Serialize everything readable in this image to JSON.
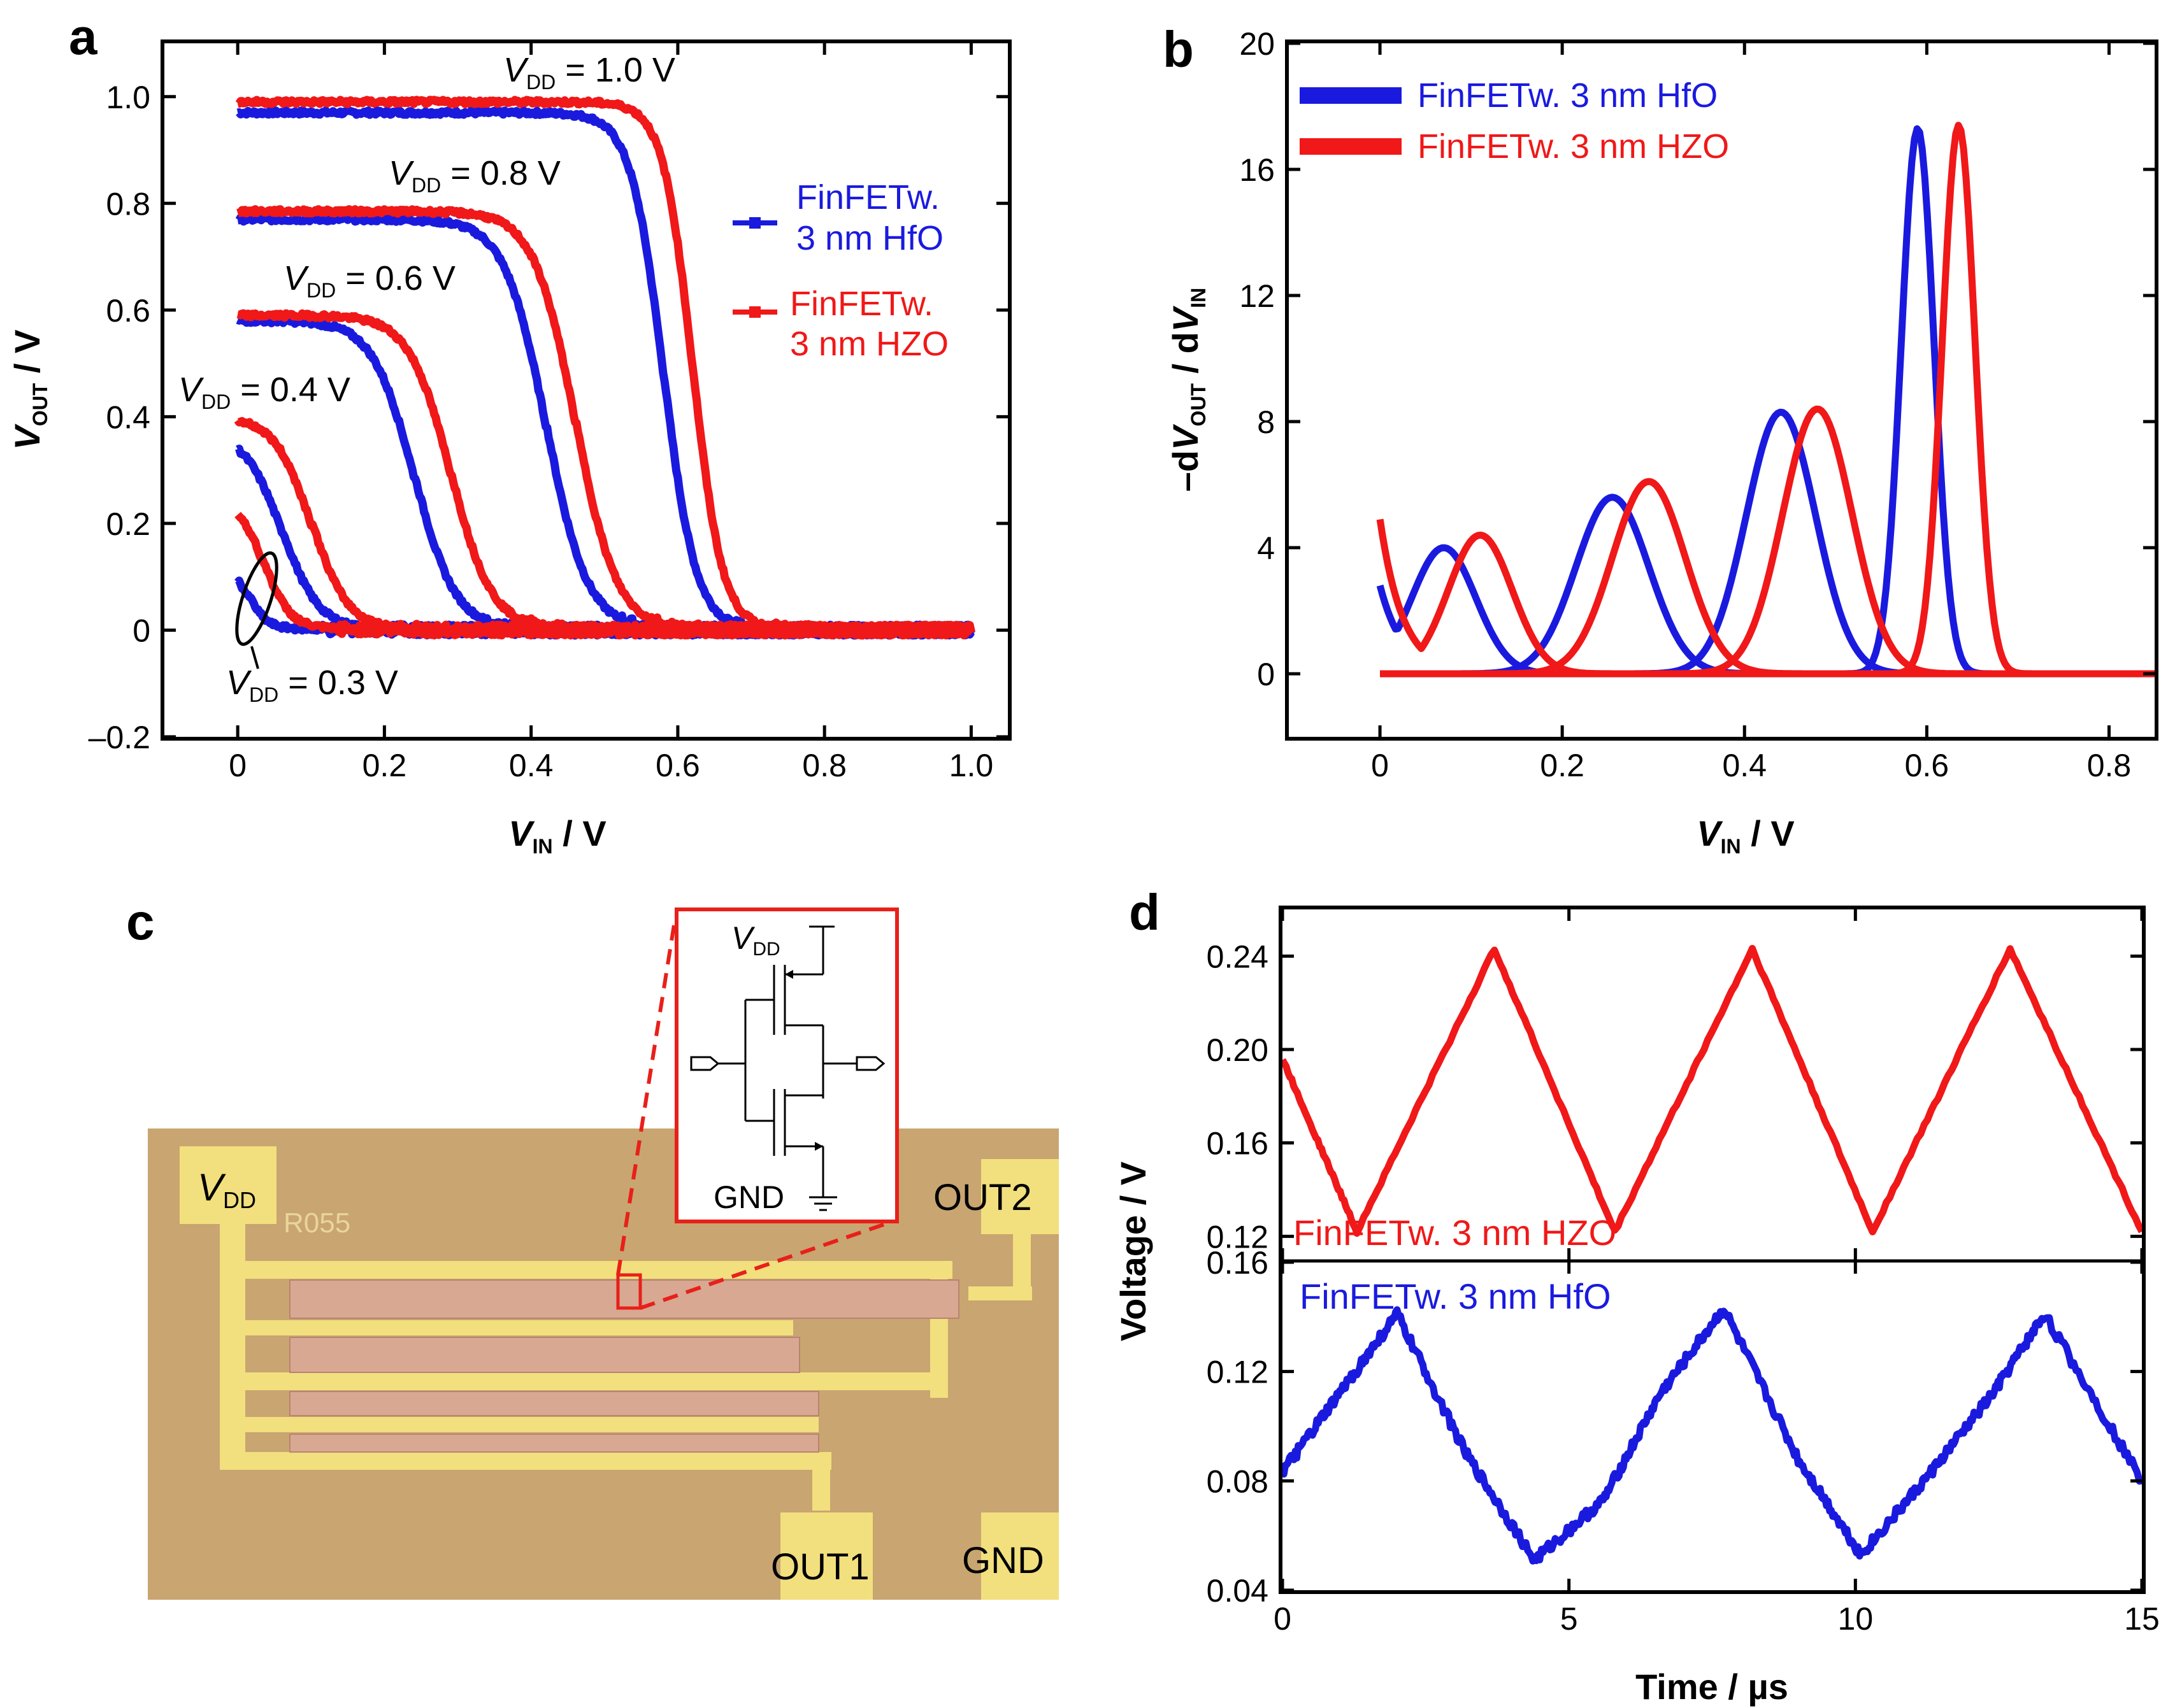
{
  "panels": {
    "a": {
      "letter": "a"
    },
    "b": {
      "letter": "b"
    },
    "c": {
      "letter": "c"
    },
    "d": {
      "letter": "d"
    }
  },
  "colors": {
    "blue": "#1a1adf",
    "red": "#f01818"
  },
  "chart_data": [
    {
      "id": "a",
      "type": "line",
      "xlabel_main": "V",
      "xlabel_sub": "IN",
      "xlabel_unit": " / V",
      "ylabel_main": "V",
      "ylabel_sub": "OUT",
      "ylabel_unit": " / V",
      "xlim": [
        -0.1,
        1.05
      ],
      "ylim": [
        -0.2,
        1.1
      ],
      "xticks": [
        0,
        0.2,
        0.4,
        0.6,
        0.8,
        1.0
      ],
      "xtick_labels": [
        "0",
        "0.2",
        "0.4",
        "0.6",
        "0.8",
        "1.0"
      ],
      "yticks": [
        -0.2,
        0,
        0.2,
        0.4,
        0.6,
        0.8,
        1.0
      ],
      "ytick_labels": [
        "–0.2",
        "0",
        "0.2",
        "0.4",
        "0.6",
        "0.8",
        "1.0"
      ],
      "legend": [
        {
          "line1": "FinFETw.",
          "line2": "3 nm HfO",
          "color": "#1a1adf"
        },
        {
          "line1": "FinFETw.",
          "line2": "3 nm HZO",
          "color": "#f01818"
        }
      ],
      "vdd_labels": [
        {
          "main": "V",
          "sub": "DD",
          "rest": " = 1.0 V"
        },
        {
          "main": "V",
          "sub": "DD",
          "rest": " = 0.8 V"
        },
        {
          "main": "V",
          "sub": "DD",
          "rest": " = 0.6 V"
        },
        {
          "main": "V",
          "sub": "DD",
          "rest": " = 0.4 V"
        },
        {
          "main": "V",
          "sub": "DD",
          "rest": " = 0.3 V"
        }
      ],
      "series": [
        {
          "material": "HfO",
          "vdd": 1.0,
          "vout_high": 0.97,
          "switch_v": 0.58,
          "steepness": 0.022,
          "color": "#1a1adf"
        },
        {
          "material": "HfO",
          "vdd": 0.8,
          "vout_high": 0.77,
          "switch_v": 0.42,
          "steepness": 0.028,
          "color": "#1a1adf"
        },
        {
          "material": "HfO",
          "vdd": 0.6,
          "vout_high": 0.58,
          "switch_v": 0.24,
          "steepness": 0.028,
          "color": "#1a1adf"
        },
        {
          "material": "HfO",
          "vdd": 0.4,
          "vout_high": 0.37,
          "switch_v": 0.06,
          "steepness": 0.025,
          "color": "#1a1adf"
        },
        {
          "material": "HfO",
          "vdd": 0.3,
          "vout_high": 0.12,
          "switch_v": 0.015,
          "steepness": 0.012,
          "color": "#1a1adf"
        },
        {
          "material": "HZO",
          "vdd": 1.0,
          "vout_high": 0.99,
          "switch_v": 0.62,
          "steepness": 0.02,
          "color": "#f01818"
        },
        {
          "material": "HZO",
          "vdd": 0.8,
          "vout_high": 0.785,
          "switch_v": 0.46,
          "steepness": 0.028,
          "color": "#f01818"
        },
        {
          "material": "HZO",
          "vdd": 0.6,
          "vout_high": 0.59,
          "switch_v": 0.29,
          "steepness": 0.028,
          "color": "#f01818"
        },
        {
          "material": "HZO",
          "vdd": 0.4,
          "vout_high": 0.4,
          "switch_v": 0.1,
          "steepness": 0.025,
          "color": "#f01818"
        },
        {
          "material": "HZO",
          "vdd": 0.3,
          "vout_high": 0.25,
          "switch_v": 0.035,
          "steepness": 0.018,
          "color": "#f01818"
        }
      ]
    },
    {
      "id": "b",
      "type": "line",
      "xlabel_main": "V",
      "xlabel_sub": "IN",
      "xlabel_unit": " / V",
      "ylabel_pre": "–d",
      "ylabel_main": "V",
      "ylabel_sub": "OUT",
      "ylabel_mid": " / d",
      "ylabel_main2": "V",
      "ylabel_sub2": "IN",
      "xlim": [
        -0.1,
        0.85
      ],
      "ylim": [
        -2,
        20
      ],
      "xticks": [
        0,
        0.2,
        0.4,
        0.6,
        0.8
      ],
      "xtick_labels": [
        "0",
        "0.2",
        "0.4",
        "0.6",
        "0.8"
      ],
      "yticks": [
        0,
        4,
        8,
        12,
        16,
        20
      ],
      "ytick_labels": [
        "0",
        "4",
        "8",
        "12",
        "16",
        "20"
      ],
      "legend": [
        {
          "label": "FinFETw. 3 nm HfO",
          "color": "#1a1adf"
        },
        {
          "label": "FinFETw. 3 nm HZO",
          "color": "#f01818"
        }
      ],
      "series": [
        {
          "material": "HfO",
          "color": "#1a1adf",
          "start": 2.8,
          "peaks": [
            {
              "x": 0.07,
              "y": 4.0,
              "w": 0.035
            },
            {
              "x": 0.255,
              "y": 5.6,
              "w": 0.04
            },
            {
              "x": 0.44,
              "y": 8.3,
              "w": 0.038
            },
            {
              "x": 0.59,
              "y": 17.3,
              "w": 0.018
            }
          ]
        },
        {
          "material": "HZO",
          "color": "#f01818",
          "start": 4.9,
          "peaks": [
            {
              "x": 0.11,
              "y": 4.4,
              "w": 0.035
            },
            {
              "x": 0.295,
              "y": 6.1,
              "w": 0.04
            },
            {
              "x": 0.48,
              "y": 8.4,
              "w": 0.038
            },
            {
              "x": 0.635,
              "y": 17.4,
              "w": 0.018
            }
          ]
        }
      ]
    },
    {
      "id": "d",
      "type": "line",
      "xlabel": "Time / µs",
      "ylabel": "Voltage / V",
      "xlim": [
        0,
        15
      ],
      "xticks": [
        0,
        5,
        10,
        15
      ],
      "xtick_labels": [
        "0",
        "5",
        "10",
        "15"
      ],
      "top": {
        "ylim": [
          0.11,
          0.26
        ],
        "yticks": [
          0.12,
          0.16,
          0.2,
          0.24
        ],
        "ytick_labels": [
          "0.12",
          "0.16",
          "0.20",
          "0.24"
        ],
        "label": "FinFETw. 3 nm HZO",
        "color": "#f01818",
        "points": [
          [
            0,
            0.196
          ],
          [
            1.3,
            0.122
          ],
          [
            3.7,
            0.243
          ],
          [
            5.8,
            0.122
          ],
          [
            8.2,
            0.243
          ],
          [
            10.3,
            0.122
          ],
          [
            12.7,
            0.243
          ],
          [
            15,
            0.122
          ]
        ]
      },
      "bottom": {
        "ylim": [
          0.04,
          0.16
        ],
        "yticks": [
          0.04,
          0.08,
          0.12,
          0.16
        ],
        "ytick_labels": [
          "0.04",
          "0.08",
          "0.12",
          "0.16"
        ],
        "label": "FinFETw. 3 nm HfO",
        "color": "#1a1adf",
        "points": [
          [
            0,
            0.083
          ],
          [
            1.0,
            0.112
          ],
          [
            2.0,
            0.141
          ],
          [
            3.2,
            0.09
          ],
          [
            4.4,
            0.051
          ],
          [
            5.6,
            0.073
          ],
          [
            6.6,
            0.112
          ],
          [
            7.7,
            0.143
          ],
          [
            9.0,
            0.088
          ],
          [
            10.1,
            0.053
          ],
          [
            11.2,
            0.08
          ],
          [
            12.4,
            0.112
          ],
          [
            13.3,
            0.141
          ],
          [
            15,
            0.08
          ]
        ]
      }
    }
  ],
  "micrograph": {
    "chip_id": "R055",
    "pads": {
      "vdd_main": "V",
      "vdd_sub": "DD",
      "out1": "OUT1",
      "out2": "OUT2",
      "gnd": "GND"
    },
    "inset": {
      "vdd_main": "V",
      "vdd_sub": "DD",
      "gnd": "GND"
    }
  }
}
